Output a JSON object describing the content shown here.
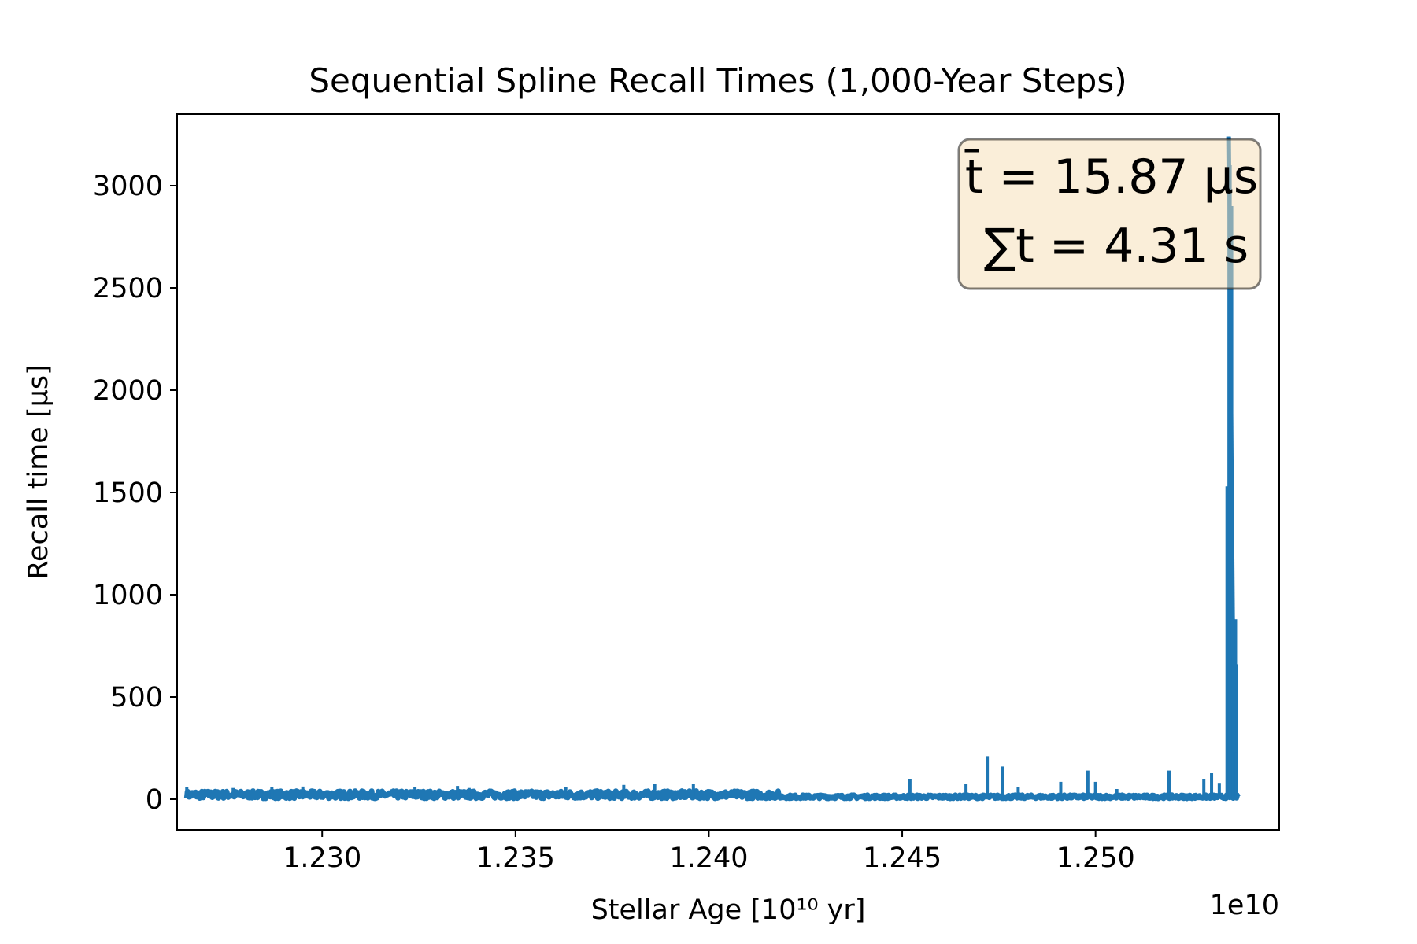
{
  "chart_data": {
    "type": "line",
    "title": "Sequential Spline Recall Times (1,000-Year Steps)",
    "xlabel": "Stellar Age [10¹⁰ yr]",
    "ylabel": "Recall time [μs]",
    "x_offset_label": "1e10",
    "xlim": [
      1.22625,
      1.25475
    ],
    "ylim": [
      -150,
      3350
    ],
    "x_ticks": [
      1.23,
      1.235,
      1.24,
      1.245,
      1.25
    ],
    "x_tick_labels": [
      "1.230",
      "1.235",
      "1.240",
      "1.245",
      "1.250"
    ],
    "y_ticks": [
      0,
      500,
      1000,
      1500,
      2000,
      2500,
      3000
    ],
    "y_tick_labels": [
      "0",
      "500",
      "1000",
      "1500",
      "2000",
      "2500",
      "3000"
    ],
    "grid": false,
    "annotation": {
      "mean_line": "t̄ = 15.87 μs",
      "sum_line": "∑t = 4.31 s",
      "position": "top-right"
    },
    "series": [
      {
        "color": "#1f77b4",
        "spikes": [
          {
            "x": 1.2265,
            "y": 60
          },
          {
            "x": 1.2277,
            "y": 55
          },
          {
            "x": 1.2287,
            "y": 60
          },
          {
            "x": 1.2295,
            "y": 62
          },
          {
            "x": 1.2324,
            "y": 60
          },
          {
            "x": 1.2335,
            "y": 65
          },
          {
            "x": 1.2338,
            "y": 55
          },
          {
            "x": 1.2363,
            "y": 58
          },
          {
            "x": 1.2378,
            "y": 70
          },
          {
            "x": 1.2386,
            "y": 75
          },
          {
            "x": 1.2396,
            "y": 75
          },
          {
            "x": 1.2422,
            "y": 30
          },
          {
            "x": 1.2445,
            "y": 30
          },
          {
            "x": 1.2452,
            "y": 100
          },
          {
            "x": 1.24665,
            "y": 75
          },
          {
            "x": 1.2472,
            "y": 210
          },
          {
            "x": 1.2476,
            "y": 160
          },
          {
            "x": 1.248,
            "y": 60
          },
          {
            "x": 1.2491,
            "y": 85
          },
          {
            "x": 1.2498,
            "y": 140
          },
          {
            "x": 1.25,
            "y": 85
          },
          {
            "x": 1.25055,
            "y": 50
          },
          {
            "x": 1.2519,
            "y": 140
          },
          {
            "x": 1.2528,
            "y": 100
          },
          {
            "x": 1.253,
            "y": 130
          },
          {
            "x": 1.2532,
            "y": 80
          },
          {
            "x": 1.2534,
            "y": 1530
          },
          {
            "x": 1.25345,
            "y": 3240
          },
          {
            "x": 1.25348,
            "y": 3100
          },
          {
            "x": 1.25352,
            "y": 2900
          },
          {
            "x": 1.25356,
            "y": 890
          },
          {
            "x": 1.2536,
            "y": 850
          },
          {
            "x": 1.25364,
            "y": 660
          }
        ]
      }
    ]
  }
}
